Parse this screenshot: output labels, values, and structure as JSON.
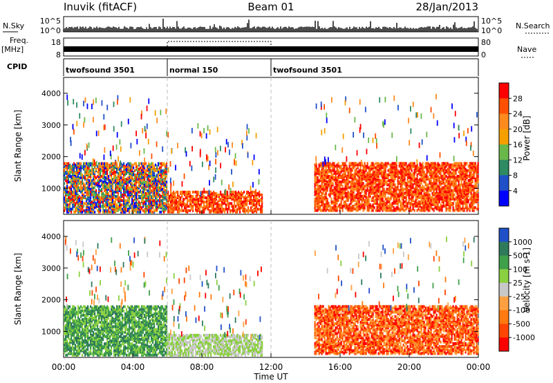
{
  "header": {
    "station": "Inuvik (fitACF)",
    "beam": "Beam 01",
    "date": "28/Jan/2013"
  },
  "top_panels": {
    "nsky_label": "N.Sky",
    "nsearch_label": "N.Search",
    "nsky_ticks": [
      "10^5",
      "10^0"
    ],
    "nsearch_ticks": [
      "10^5",
      "10^0"
    ],
    "freq_label_1": "Freq.",
    "freq_label_2": "[MHz]",
    "freq_ticks": [
      "18",
      "8"
    ],
    "nave_label": "Nave",
    "nave_ticks": [
      "80",
      "0"
    ],
    "cpid_label": "CPID",
    "cpid_segments": [
      {
        "label": "twofsound 3501",
        "start_hour": 0,
        "end_hour": 6
      },
      {
        "label": "normal 150",
        "start_hour": 6,
        "end_hour": 12
      },
      {
        "label": "twofsound 3501",
        "start_hour": 12,
        "end_hour": 24
      }
    ]
  },
  "chart_data": [
    {
      "type": "heatmap",
      "title": "",
      "xlabel": "Time UT",
      "ylabel": "Slant Range [km]",
      "xlim": [
        0,
        24
      ],
      "ylim": [
        180,
        4500
      ],
      "x_ticks": [
        "00:00",
        "04:00",
        "08:00",
        "12:00",
        "16:00",
        "20:00",
        "00:00"
      ],
      "x_tick_hours": [
        0,
        4,
        8,
        12,
        16,
        20,
        24
      ],
      "y_ticks": [
        1000,
        2000,
        3000,
        4000
      ],
      "colorbar": {
        "label": "Power [dB]",
        "ticks": [
          "28",
          "24",
          "20",
          "16",
          "12",
          "8",
          "4"
        ],
        "colors": [
          "#ff0000",
          "#ff5000",
          "#ff8a1e",
          "#f5a000",
          "#6ab84a",
          "#2e8a62",
          "#1f50c8",
          "#0000ff"
        ]
      },
      "regions": [
        {
          "t0": 0,
          "t1": 6,
          "r0": 250,
          "r1": 1800,
          "level": "mixed"
        },
        {
          "t0": 6,
          "t1": 11.5,
          "r0": 250,
          "r1": 900,
          "level": "high"
        },
        {
          "t0": 14.5,
          "t1": 24,
          "r0": 300,
          "r1": 1800,
          "level": "high"
        }
      ]
    },
    {
      "type": "heatmap",
      "title": "",
      "xlabel": "Time UT",
      "ylabel": "Slant Range [km]",
      "xlim": [
        0,
        24
      ],
      "ylim": [
        180,
        4500
      ],
      "x_ticks": [
        "00:00",
        "04:00",
        "08:00",
        "12:00",
        "16:00",
        "20:00",
        "00:00"
      ],
      "x_tick_hours": [
        0,
        4,
        8,
        12,
        16,
        20,
        24
      ],
      "y_ticks": [
        1000,
        2000,
        3000,
        4000
      ],
      "colorbar": {
        "label": "Velocity [m s-1]",
        "ticks": [
          "1000",
          "500",
          "100",
          "25",
          "-25",
          "-100",
          "-500",
          "-1000"
        ],
        "colors": [
          "#2050c8",
          "#2e7a5a",
          "#3fa04a",
          "#8ad040",
          "#c8c8c8",
          "#ffa040",
          "#ff7a10",
          "#ff4500",
          "#ff0000"
        ]
      },
      "regions": [
        {
          "t0": 0,
          "t1": 6,
          "r0": 250,
          "r1": 1800,
          "level": "positive"
        },
        {
          "t0": 6,
          "t1": 11.5,
          "r0": 250,
          "r1": 900,
          "level": "near-zero"
        },
        {
          "t0": 14.5,
          "t1": 24,
          "r0": 300,
          "r1": 1800,
          "level": "negative"
        }
      ]
    }
  ]
}
